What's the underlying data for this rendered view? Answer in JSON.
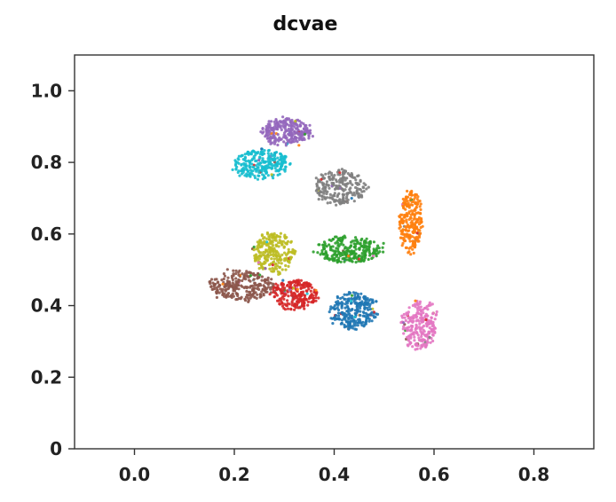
{
  "chart_data": {
    "type": "scatter",
    "title": "dcvae",
    "xlabel": "",
    "ylabel": "",
    "xlim": [
      -0.12,
      0.92
    ],
    "ylim": [
      0.0,
      1.1
    ],
    "grid": false,
    "legend": "none",
    "x_ticks": [
      0.0,
      0.2,
      0.4,
      0.6,
      0.8
    ],
    "x_tick_labels": [
      "0.0",
      "0.2",
      "0.4",
      "0.6",
      "0.8"
    ],
    "y_ticks": [
      0.0,
      0.2,
      0.4,
      0.6,
      0.8,
      1.0
    ],
    "y_tick_labels": [
      "0",
      "0.2",
      "0.4",
      "0.6",
      "0.8",
      "1.0"
    ],
    "clusters": [
      {
        "color": "#9467bd",
        "center": [
          0.305,
          0.885
        ],
        "spread": [
          0.055,
          0.04
        ],
        "count": 260
      },
      {
        "color": "#17becf",
        "center": [
          0.255,
          0.795
        ],
        "spread": [
          0.06,
          0.045
        ],
        "count": 260
      },
      {
        "color": "#7f7f7f",
        "center": [
          0.41,
          0.73
        ],
        "spread": [
          0.055,
          0.055
        ],
        "count": 240
      },
      {
        "color": "#ff7f0e",
        "center": [
          0.553,
          0.635
        ],
        "spread": [
          0.025,
          0.095
        ],
        "count": 240
      },
      {
        "color": "#2ca02c",
        "center": [
          0.43,
          0.555
        ],
        "spread": [
          0.07,
          0.04
        ],
        "count": 260
      },
      {
        "color": "#bcbd22",
        "center": [
          0.278,
          0.55
        ],
        "spread": [
          0.045,
          0.06
        ],
        "count": 240
      },
      {
        "color": "#8c564b",
        "center": [
          0.215,
          0.455
        ],
        "spread": [
          0.07,
          0.045
        ],
        "count": 260
      },
      {
        "color": "#d62728",
        "center": [
          0.32,
          0.43
        ],
        "spread": [
          0.05,
          0.045
        ],
        "count": 240
      },
      {
        "color": "#1f77b4",
        "center": [
          0.44,
          0.385
        ],
        "spread": [
          0.05,
          0.055
        ],
        "count": 260
      },
      {
        "color": "#e377c2",
        "center": [
          0.57,
          0.345
        ],
        "spread": [
          0.04,
          0.075
        ],
        "count": 240
      }
    ]
  }
}
